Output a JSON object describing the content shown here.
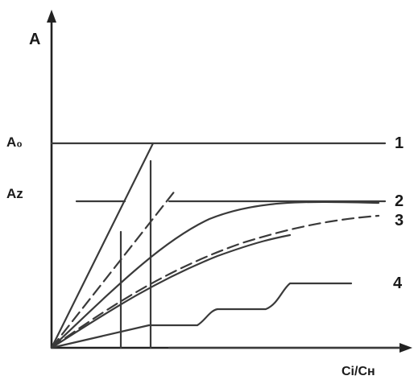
{
  "labels": {
    "y_axis": "A",
    "x_axis": "Ci/Cн",
    "a0": "A₀",
    "az": "Aᴢ",
    "curve_1": "1",
    "curve_2": "2",
    "curve_3": "3",
    "curve_4": "4"
  }
}
